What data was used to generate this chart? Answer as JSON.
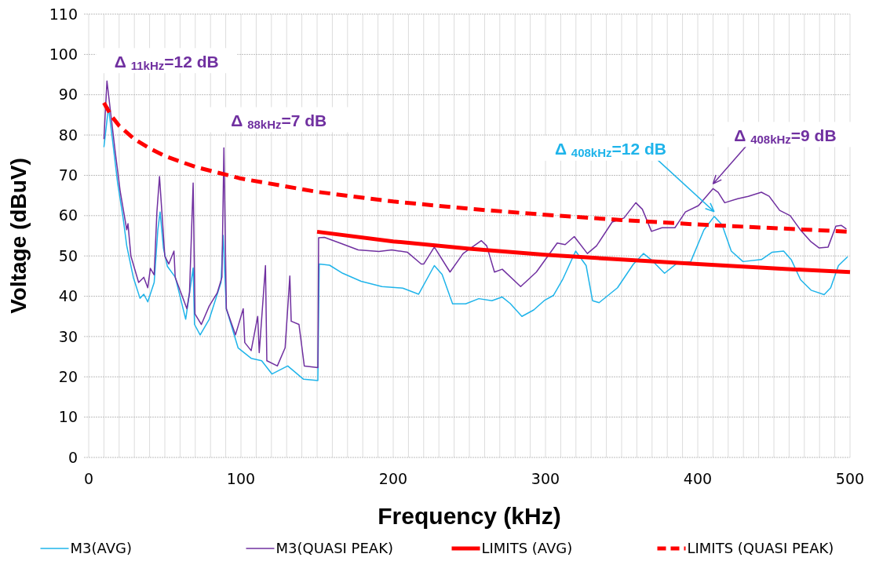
{
  "chart_data": {
    "type": "line",
    "xlabel": "Frequency (kHz)",
    "ylabel": "Voltage (dBuV)",
    "xlim": [
      0,
      500
    ],
    "ylim": [
      0,
      110
    ],
    "xticks": [
      0,
      100,
      200,
      300,
      400,
      500
    ],
    "yticks": [
      0,
      10,
      20,
      30,
      40,
      50,
      60,
      70,
      80,
      90,
      100,
      110
    ],
    "grid": true,
    "legend": "bottom",
    "marker": "none",
    "series": [
      {
        "name": "M3(AVG)",
        "color": "#1fb4ea",
        "line_style": "solid",
        "x": [
          10,
          13,
          15.5,
          19,
          22.5,
          25,
          29.3,
          33.7,
          36.2,
          38.8,
          43,
          45.4,
          46.9,
          49.1,
          51.7,
          56.9,
          63.7,
          68.6,
          69.5,
          73.2,
          79.2,
          86.9,
          88.3,
          90.4,
          98.1,
          106.7,
          113.6,
          120.4,
          130.7,
          141.1,
          150.5,
          151.4,
          158.2,
          166.8,
          178.9,
          192.6,
          206.3,
          216.7,
          227,
          232.1,
          239,
          247.6,
          256.2,
          264.8,
          271.6,
          276.8,
          284.5,
          292.3,
          299.1,
          305.2,
          311.2,
          319.8,
          326.7,
          330.9,
          335.2,
          347.3,
          357.6,
          364.4,
          369.6,
          378.2,
          386.8,
          395.4,
          404,
          410.8,
          416,
          422,
          429.7,
          441.8,
          448.7,
          456.4,
          461.5,
          467.5,
          474.4,
          483,
          487.3,
          492.4,
          498.4
        ],
        "values": [
          77,
          86.9,
          79.2,
          68.1,
          59.7,
          52.5,
          44.7,
          39.5,
          40.5,
          38.6,
          43.4,
          56.4,
          60.9,
          51.9,
          47.4,
          44.7,
          34.3,
          47,
          33,
          30.4,
          34.3,
          43.4,
          55.1,
          36.9,
          27.2,
          24.6,
          24,
          20.7,
          22.7,
          19.4,
          19.1,
          48,
          47.7,
          45.7,
          43.7,
          42.4,
          42,
          40.5,
          47.6,
          45.4,
          38.1,
          38.1,
          39.4,
          38.9,
          39.8,
          38.2,
          35,
          36.6,
          38.9,
          40.2,
          44.1,
          51.2,
          47.6,
          38.9,
          38.4,
          42.1,
          47.9,
          50.6,
          49,
          45.7,
          48.3,
          48.6,
          56.4,
          59.8,
          57.7,
          51.2,
          48.6,
          49.1,
          50.9,
          51.2,
          49,
          44.1,
          41.5,
          40.4,
          42.1,
          47.6,
          49.8
        ]
      },
      {
        "name": "M3(QUASI PEAK)",
        "color": "#7030a0",
        "line_style": "solid",
        "x": [
          10,
          12,
          14.8,
          17.4,
          20.7,
          25,
          25.8,
          27.7,
          32.8,
          36.2,
          38.8,
          40.5,
          43,
          44.8,
          46.5,
          47.9,
          50,
          52.6,
          56,
          56.8,
          61.9,
          64.5,
          66.2,
          68.6,
          69.8,
          74,
          79.2,
          84.4,
          87.5,
          88.8,
          90.4,
          96.4,
          101.5,
          102.5,
          106.7,
          111,
          112,
          116.1,
          117,
          123.9,
          129,
          132.1,
          133,
          138.1,
          141.6,
          150.5,
          151,
          154.8,
          165,
          177,
          190.6,
          199,
          209.4,
          218.4,
          220.1,
          227,
          237.3,
          245.9,
          257.9,
          261.4,
          266.5,
          271.6,
          283.7,
          294,
          307.7,
          312.9,
          318.9,
          327.5,
          333.5,
          343.8,
          351.5,
          359.3,
          363.6,
          369.6,
          376.5,
          385,
          391.9,
          400.5,
          410,
          413.4,
          417.7,
          426.3,
          433.2,
          441.8,
          446.9,
          453.8,
          460.7,
          467.5,
          474.4,
          479.6,
          485.6,
          490.7,
          494.2,
          497.6
        ],
        "values": [
          79,
          93.4,
          84.3,
          75.9,
          66,
          56.5,
          58,
          50,
          43.4,
          44.7,
          42.1,
          46.9,
          45.3,
          60.9,
          69.7,
          61.8,
          49.9,
          48,
          51.2,
          44.7,
          39.5,
          36.9,
          40.8,
          68.1,
          35.6,
          33,
          37.6,
          40.8,
          44.7,
          76.8,
          36.9,
          30.4,
          36.9,
          28.5,
          26.5,
          35,
          26,
          47.6,
          24,
          22.7,
          27.2,
          45,
          33.8,
          33,
          22.7,
          22.3,
          54.5,
          54.6,
          53.2,
          51.5,
          51.1,
          51.5,
          50.9,
          48,
          48,
          52.2,
          46,
          50.6,
          53.8,
          52.5,
          46,
          46.7,
          42.4,
          46,
          53.2,
          52.8,
          54.8,
          50.6,
          52.5,
          58.4,
          59.4,
          63.2,
          61.6,
          56.1,
          57,
          57,
          60.9,
          62.5,
          66.7,
          65.8,
          63.2,
          64.2,
          64.8,
          65.8,
          64.8,
          61.3,
          60,
          56.4,
          53.5,
          52,
          52.2,
          57.4,
          57.6,
          56.7
        ]
      },
      {
        "name": "LIMITS (AVG)",
        "color": "#ff0000",
        "line_style": "solid",
        "x": [
          150,
          200,
          250,
          300,
          350,
          400,
          450,
          500
        ],
        "values": [
          56,
          53.6,
          51.8,
          50.3,
          49.1,
          48,
          46.9,
          46
        ]
      },
      {
        "name": "LIMITS (QUASI PEAK)",
        "color": "#ff0000",
        "line_style": "dashed",
        "x": [
          10,
          15,
          20,
          30,
          40,
          50,
          70,
          100,
          150,
          200,
          250,
          300,
          350,
          400,
          450,
          500
        ],
        "values": [
          88,
          84.7,
          82.3,
          79,
          76.7,
          74.8,
          72.1,
          69.2,
          65.9,
          63.5,
          61.7,
          60.2,
          58.9,
          57.8,
          56.9,
          56
        ]
      }
    ],
    "annotations": [
      {
        "text": "Δ $_{11kHz}$=12 dB",
        "x": 12,
        "y": 93.4
      },
      {
        "text": "Δ $_{88kHz}$=7 dB",
        "x": 88.8,
        "y": 76.8
      },
      {
        "text": "Δ $_{408kHz}$=12 dB",
        "x": 410.8,
        "y": 59.8
      },
      {
        "text": "Δ $_{408kHz}$=9 dB",
        "x": 410,
        "y": 66.7
      }
    ]
  }
}
